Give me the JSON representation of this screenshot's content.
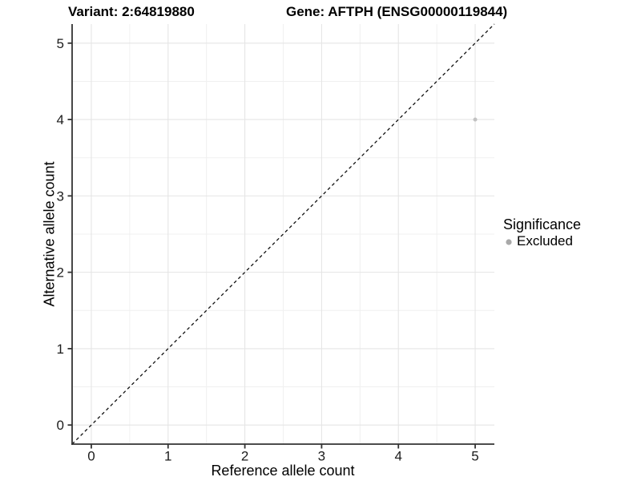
{
  "chart_data": {
    "type": "scatter",
    "title_left": "Variant: 2:64819880",
    "title_right": "Gene: AFTPH (ENSG00000119844)",
    "xlabel": "Reference allele count",
    "ylabel": "Alternative allele count",
    "xlim": [
      -0.25,
      5.25
    ],
    "ylim": [
      -0.25,
      5.25
    ],
    "xticks": [
      0,
      1,
      2,
      3,
      4,
      5
    ],
    "yticks": [
      0,
      1,
      2,
      3,
      4,
      5
    ],
    "xticks_minor": [
      0.5,
      1.5,
      2.5,
      3.5,
      4.5
    ],
    "yticks_minor": [
      0.5,
      1.5,
      2.5,
      3.5,
      4.5
    ],
    "grid": true,
    "points": [
      {
        "x": 5,
        "y": 4,
        "series": "Excluded"
      }
    ],
    "reference_line": {
      "type": "identity",
      "style": "dashed",
      "x1": -0.25,
      "y1": -0.25,
      "x2": 5.25,
      "y2": 5.25
    },
    "legend": {
      "title": "Significance",
      "position": "right",
      "entries": [
        {
          "label": "Excluded",
          "color": "#a9a9a9"
        }
      ]
    },
    "colors": {
      "point": "#c2c2c2",
      "grid_major": "#e5e5e5",
      "grid_minor": "#f0f0f0",
      "axis": "#333333",
      "tick_label": "#1c1c1c",
      "reference_line": "#111111",
      "background": "#ffffff"
    }
  }
}
